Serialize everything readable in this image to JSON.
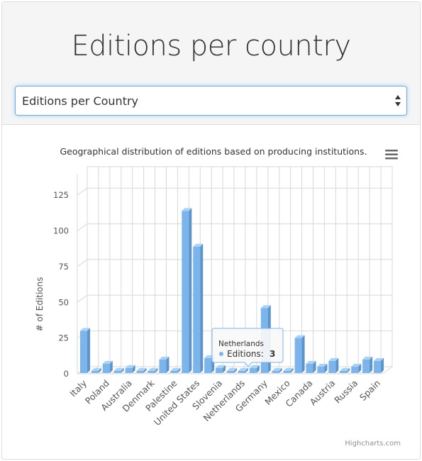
{
  "header": {
    "title": "Editions per country"
  },
  "selector": {
    "value": "Editions per Country"
  },
  "colors": {
    "bar_front": "#7cb5ec",
    "bar_top": "#a9d2f7",
    "bar_side": "#5c95cc",
    "grid": "#d8d8d8",
    "tooltip_border": "#7cb5ec"
  },
  "menu_icon": "hamburger-icon",
  "credit": "Highcharts.com",
  "chart_data": {
    "type": "bar",
    "title": "Geographical distribution of editions based on producing institutions.",
    "ylabel": "# of Editions",
    "xlabel": "",
    "ylim": [
      0,
      140
    ],
    "yticks": [
      0,
      25,
      50,
      75,
      100,
      125
    ],
    "grid": true,
    "three_d": true,
    "legend": "none",
    "categories": [
      "Italy",
      "",
      "Poland",
      "",
      "Australia",
      "",
      "Denmark",
      "",
      "Palestine",
      "",
      "United States",
      "",
      "Slovenia",
      "",
      "Netherlands",
      "",
      "Germany",
      "",
      "Mexico",
      "",
      "Canada",
      "",
      "Austria",
      "",
      "Russia",
      "",
      "Spain"
    ],
    "series": [
      {
        "name": "Editions",
        "values": [
          31,
          3,
          8,
          3,
          5,
          3,
          3,
          11,
          3,
          115,
          90,
          12,
          5,
          3,
          3,
          5,
          47,
          3,
          3,
          26,
          8,
          6,
          10,
          3,
          6,
          11,
          10
        ]
      }
    ],
    "tooltip": {
      "category": "Netherlands",
      "series": "Editions",
      "value": "3"
    }
  }
}
